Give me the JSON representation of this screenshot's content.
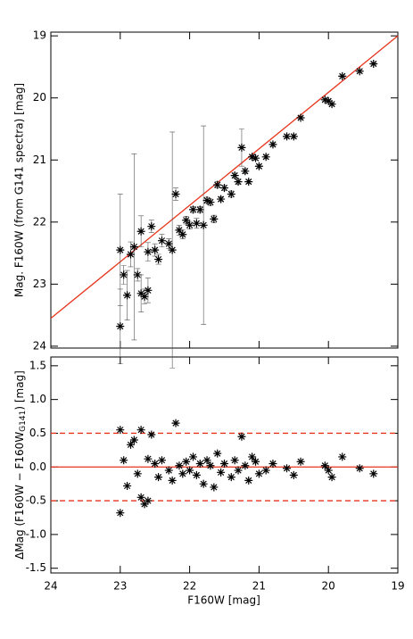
{
  "chart_data": [
    {
      "type": "scatter",
      "y_label": "Mag. F160W (from G141 spectra) [mag]",
      "xlim": [
        24,
        19
      ],
      "ylim": [
        24.03,
        18.94
      ],
      "xticks": [
        24,
        23,
        22,
        21,
        20,
        19
      ],
      "yticks": [
        19,
        20,
        21,
        22,
        23,
        24
      ],
      "show_xtick_labels": false,
      "marker_color": "#000000",
      "x": [
        23.0,
        23.0,
        22.95,
        22.9,
        22.85,
        22.8,
        22.75,
        22.7,
        22.7,
        22.65,
        22.6,
        22.6,
        22.55,
        22.5,
        22.45,
        22.4,
        22.3,
        22.25,
        22.2,
        22.15,
        22.1,
        22.05,
        22.0,
        21.95,
        21.9,
        21.85,
        21.8,
        21.75,
        21.7,
        21.65,
        21.6,
        21.55,
        21.5,
        21.4,
        21.35,
        21.3,
        21.25,
        21.2,
        21.15,
        21.1,
        21.05,
        21.0,
        20.9,
        20.8,
        20.6,
        20.5,
        20.4,
        20.05,
        20.0,
        19.95,
        19.8,
        19.55,
        19.35
      ],
      "values": [
        23.68,
        22.45,
        22.85,
        23.18,
        22.52,
        22.4,
        22.85,
        22.15,
        23.15,
        23.2,
        22.48,
        23.1,
        22.07,
        22.45,
        22.6,
        22.3,
        22.35,
        22.45,
        21.55,
        22.13,
        22.2,
        21.97,
        22.05,
        21.8,
        22.02,
        21.8,
        22.05,
        21.65,
        21.68,
        21.95,
        21.4,
        21.63,
        21.45,
        21.55,
        21.25,
        21.35,
        20.8,
        21.18,
        21.35,
        20.95,
        20.97,
        21.1,
        20.95,
        20.75,
        20.62,
        20.62,
        20.32,
        20.03,
        20.05,
        20.1,
        19.65,
        19.57,
        19.45
      ],
      "yerr": [
        0.6,
        0.9,
        0.15,
        0.4,
        0.2,
        1.5,
        0.1,
        0.25,
        0.3,
        0.12,
        0.15,
        0.2,
        0.1,
        0.1,
        0.08,
        0.1,
        0.08,
        1.9,
        0.1,
        0.08,
        0.07,
        0.06,
        0.06,
        0.05,
        0.08,
        0.05,
        1.6,
        0.05,
        0.05,
        0.06,
        0.05,
        0.04,
        0.04,
        0.05,
        0.04,
        0.04,
        0.3,
        0.04,
        0.03,
        0.03,
        0.03,
        0.03,
        0.03,
        0.03,
        0.03,
        0.03,
        0.02,
        0.02,
        0.02,
        0.02,
        0.02,
        0.02,
        0.02
      ],
      "line": {
        "x": [
          24,
          19
        ],
        "y": [
          23.55,
          19.0
        ],
        "color": "#e8341c"
      }
    },
    {
      "type": "scatter",
      "x_label": "F160W [mag]",
      "y_label": "ΔMag (F160W − F160W",
      "y_label_sub": "G141",
      "y_label_end": ") [mag]",
      "xlim": [
        24,
        19
      ],
      "ylim": [
        -1.57,
        1.63
      ],
      "xticks": [
        24,
        23,
        22,
        21,
        20,
        19
      ],
      "yticks": [
        1.5,
        {
          "value": 1.0,
          "label": "1.0"
        },
        0.5,
        {
          "value": 0.0,
          "label": "0.0"
        },
        -0.5,
        {
          "value": -1.0,
          "label": "-1.0"
        },
        -1.5
      ],
      "show_xtick_labels": true,
      "marker_color": "#000000",
      "x": [
        23.0,
        23.0,
        22.95,
        22.9,
        22.85,
        22.8,
        22.75,
        22.7,
        22.7,
        22.65,
        22.6,
        22.6,
        22.55,
        22.5,
        22.45,
        22.4,
        22.3,
        22.25,
        22.2,
        22.15,
        22.1,
        22.05,
        22.0,
        21.95,
        21.9,
        21.85,
        21.8,
        21.75,
        21.7,
        21.65,
        21.6,
        21.55,
        21.5,
        21.4,
        21.35,
        21.3,
        21.25,
        21.2,
        21.15,
        21.1,
        21.05,
        21.0,
        20.9,
        20.8,
        20.6,
        20.5,
        20.4,
        20.05,
        20.0,
        19.95,
        19.8,
        19.55,
        19.35
      ],
      "values": [
        -0.68,
        0.55,
        0.1,
        -0.28,
        0.33,
        0.4,
        -0.1,
        0.55,
        -0.45,
        -0.55,
        0.12,
        -0.5,
        0.48,
        0.05,
        -0.15,
        0.1,
        -0.05,
        -0.2,
        0.65,
        0.02,
        -0.1,
        0.08,
        -0.05,
        0.15,
        -0.12,
        0.05,
        -0.25,
        0.1,
        0.02,
        -0.3,
        0.2,
        -0.08,
        0.05,
        -0.15,
        0.1,
        -0.05,
        0.45,
        0.02,
        -0.2,
        0.15,
        0.08,
        -0.1,
        -0.05,
        0.05,
        -0.02,
        -0.12,
        0.08,
        0.02,
        -0.05,
        -0.15,
        0.15,
        -0.02,
        -0.1
      ],
      "hlines": [
        {
          "value": 0.5,
          "style": "dashed"
        },
        {
          "value": 0.0,
          "style": "solid"
        },
        {
          "value": -0.5,
          "style": "dashed"
        }
      ],
      "hline_color": "#e8341c"
    }
  ]
}
